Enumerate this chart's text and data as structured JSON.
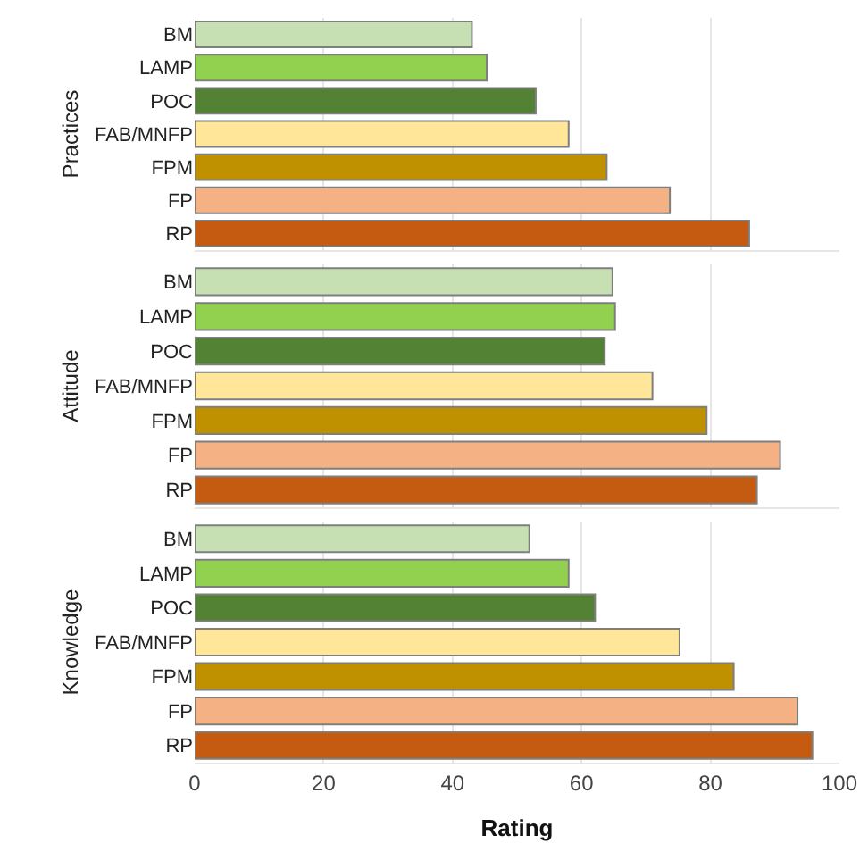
{
  "chart_data": [
    {
      "type": "bar",
      "orientation": "horizontal",
      "ylabel": "Practices",
      "categories": [
        "BM",
        "LAMP",
        "POC",
        "FAB/MNFP",
        "FPM",
        "FP",
        "RP"
      ],
      "series": [
        {
          "values": [
            43,
            45.3,
            52.9,
            58,
            63.9,
            73.7,
            86
          ],
          "colors": [
            "#c6e0b4",
            "#92d050",
            "#548235",
            "#ffe699",
            "#bf9000",
            "#f4b183",
            "#c55a11"
          ]
        }
      ],
      "xlim": [
        0,
        100
      ],
      "xticks": [
        0,
        20,
        40,
        60,
        80,
        100
      ],
      "grid": "x",
      "tick_labels": "y"
    },
    {
      "type": "bar",
      "orientation": "horizontal",
      "ylabel": "Attitude",
      "categories": [
        "BM",
        "LAMP",
        "POC",
        "FAB/MNFP",
        "FPM",
        "FP",
        "RP"
      ],
      "series": [
        {
          "values": [
            64.8,
            65.2,
            63.6,
            71,
            79.4,
            90.8,
            87.2
          ],
          "colors": [
            "#c6e0b4",
            "#92d050",
            "#548235",
            "#ffe699",
            "#bf9000",
            "#f4b183",
            "#c55a11"
          ]
        }
      ],
      "xlim": [
        0,
        100
      ],
      "xticks": [
        0,
        20,
        40,
        60,
        80,
        100
      ],
      "grid": "x",
      "tick_labels": "y"
    },
    {
      "type": "bar",
      "orientation": "horizontal",
      "ylabel": "Knowledge",
      "xlabel": "Rating",
      "categories": [
        "BM",
        "LAMP",
        "POC",
        "FAB/MNFP",
        "FPM",
        "FP",
        "RP"
      ],
      "series": [
        {
          "values": [
            51.9,
            58,
            62.1,
            75.2,
            83.6,
            93.5,
            95.8
          ],
          "colors": [
            "#c6e0b4",
            "#92d050",
            "#548235",
            "#ffe699",
            "#bf9000",
            "#f4b183",
            "#c55a11"
          ]
        }
      ],
      "xlim": [
        0,
        100
      ],
      "xticks": [
        0,
        20,
        40,
        60,
        80,
        100
      ],
      "grid": "x"
    }
  ]
}
